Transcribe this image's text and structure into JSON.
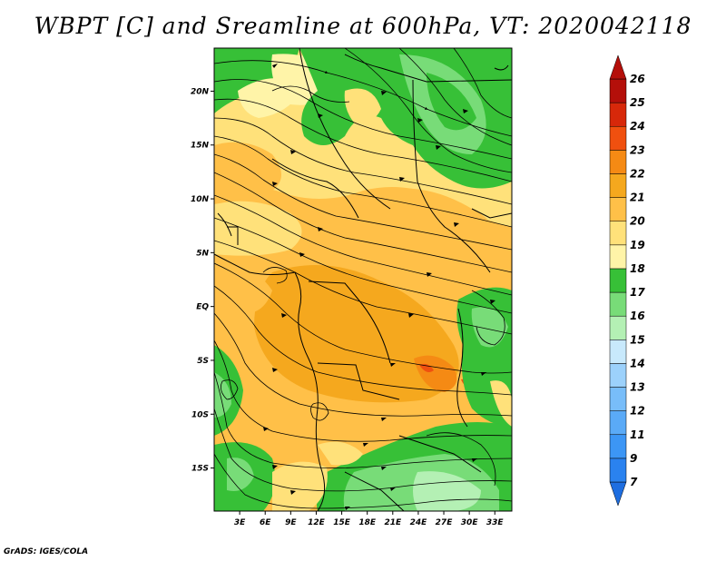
{
  "title": "WBPT [C] and Sreamline at 600hPa, VT: 2020042118",
  "credit": "GrADS: IGES/COLA",
  "map": {
    "lat_range": [
      -19,
      24
    ],
    "lon_range": [
      0,
      35
    ],
    "lat_ticks": [
      {
        "value": 20,
        "label": "20N"
      },
      {
        "value": 15,
        "label": "15N"
      },
      {
        "value": 10,
        "label": "10N"
      },
      {
        "value": 5,
        "label": "5N"
      },
      {
        "value": 0,
        "label": "EQ"
      },
      {
        "value": -5,
        "label": "5S"
      },
      {
        "value": -10,
        "label": "10S"
      },
      {
        "value": -15,
        "label": "15S"
      }
    ],
    "lon_ticks": [
      {
        "value": 3,
        "label": "3E"
      },
      {
        "value": 6,
        "label": "6E"
      },
      {
        "value": 9,
        "label": "9E"
      },
      {
        "value": 12,
        "label": "12E"
      },
      {
        "value": 15,
        "label": "15E"
      },
      {
        "value": 18,
        "label": "18E"
      },
      {
        "value": 21,
        "label": "21E"
      },
      {
        "value": 24,
        "label": "24E"
      },
      {
        "value": 27,
        "label": "27E"
      },
      {
        "value": 30,
        "label": "30E"
      },
      {
        "value": 33,
        "label": "33E"
      }
    ]
  },
  "colorbar": {
    "levels": [
      {
        "label": "7",
        "color": "#1e6ee0"
      },
      {
        "label": "9",
        "color": "#2a82ef"
      },
      {
        "label": "11",
        "color": "#3c96f5"
      },
      {
        "label": "12",
        "color": "#5aaaf7"
      },
      {
        "label": "13",
        "color": "#78bdf9"
      },
      {
        "label": "14",
        "color": "#9cd1fb"
      },
      {
        "label": "15",
        "color": "#c8e9fc"
      },
      {
        "label": "16",
        "color": "#b4f0b4"
      },
      {
        "label": "17",
        "color": "#78dc78"
      },
      {
        "label": "18",
        "color": "#37c037"
      },
      {
        "label": "19",
        "color": "#fff4a8"
      },
      {
        "label": "20",
        "color": "#ffe17a"
      },
      {
        "label": "21",
        "color": "#ffc048"
      },
      {
        "label": "22",
        "color": "#f5a81e"
      },
      {
        "label": "23",
        "color": "#f58a14"
      },
      {
        "label": "24",
        "color": "#f0500f"
      },
      {
        "label": "25",
        "color": "#d7280a"
      },
      {
        "label": "26",
        "color": "#b40f0a"
      }
    ]
  }
}
